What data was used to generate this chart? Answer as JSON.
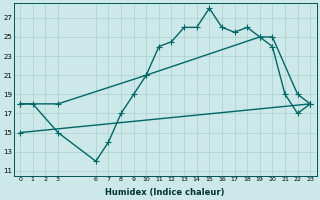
{
  "xlabel": "Humidex (Indice chaleur)",
  "bg_color": "#cce8e8",
  "grid_color": "#aacfcf",
  "line_color": "#006666",
  "xlim": [
    -0.5,
    23.5
  ],
  "ylim": [
    10.5,
    28.5
  ],
  "yticks": [
    11,
    13,
    15,
    17,
    19,
    21,
    23,
    25,
    27
  ],
  "xticks": [
    0,
    1,
    2,
    3,
    6,
    7,
    8,
    9,
    10,
    11,
    12,
    13,
    14,
    15,
    16,
    17,
    18,
    19,
    20,
    21,
    22,
    23
  ],
  "line1_x": [
    0,
    1,
    3,
    6,
    7,
    8,
    9,
    10,
    11,
    12,
    13,
    14,
    15,
    16,
    17,
    18,
    19,
    20,
    21,
    22,
    23
  ],
  "line1_y": [
    18,
    18,
    15,
    12,
    14,
    17,
    19,
    21,
    24,
    24.5,
    26,
    26,
    28,
    26,
    25.5,
    26,
    25,
    24,
    19,
    17,
    18
  ],
  "line2_x": [
    0,
    3,
    10,
    19,
    20,
    22,
    23
  ],
  "line2_y": [
    18,
    18,
    21,
    25,
    25,
    19,
    18
  ],
  "line3_x": [
    0,
    23
  ],
  "line3_y": [
    15,
    18
  ],
  "marker_size": 4,
  "line_width": 1.0
}
